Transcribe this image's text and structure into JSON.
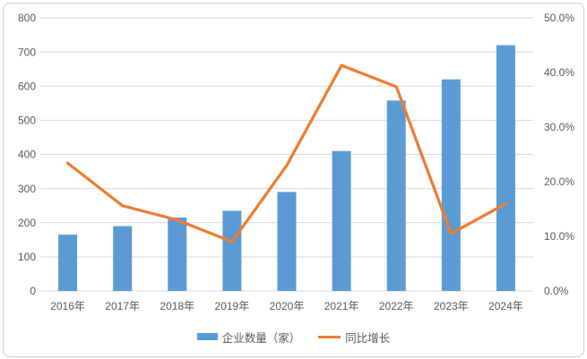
{
  "colors": {
    "bar": "#5b9bd5",
    "line": "#ed7d31",
    "grid": "#d9d9d9",
    "axis_text": "#595959",
    "background": "#ffffff",
    "frame_border": "#cfcfcf"
  },
  "chart_data": {
    "type": "bar",
    "subtype": "bar-line-combo",
    "title": "",
    "categories": [
      "2016年",
      "2017年",
      "2018年",
      "2019年",
      "2020年",
      "2021年",
      "2022年",
      "2023年",
      "2024年"
    ],
    "series": [
      {
        "name": "企业数量（家）",
        "type": "bar",
        "axis": "left",
        "color": "#5b9bd5",
        "values": [
          165,
          190,
          215,
          235,
          290,
          410,
          558,
          620,
          720
        ]
      },
      {
        "name": "同比增长",
        "type": "line",
        "axis": "right",
        "color": "#ed7d31",
        "values": [
          23.4,
          15.6,
          13.0,
          9.0,
          23.0,
          41.3,
          37.4,
          10.5,
          16.0
        ]
      }
    ],
    "left_axis": {
      "min": 0,
      "max": 800,
      "step": 100,
      "ticks": [
        "800",
        "700",
        "600",
        "500",
        "400",
        "300",
        "200",
        "100",
        "0"
      ]
    },
    "right_axis": {
      "min": 0,
      "max": 50,
      "step": 10,
      "ticks": [
        "50.0%",
        "40.0%",
        "30.0%",
        "20.0%",
        "10.0%",
        "0.0%"
      ]
    },
    "grid": true,
    "legend_position": "bottom"
  },
  "legend": {
    "items": [
      {
        "label": "企业数量（家）",
        "swatch": "bar"
      },
      {
        "label": "同比增长",
        "swatch": "line"
      }
    ]
  }
}
